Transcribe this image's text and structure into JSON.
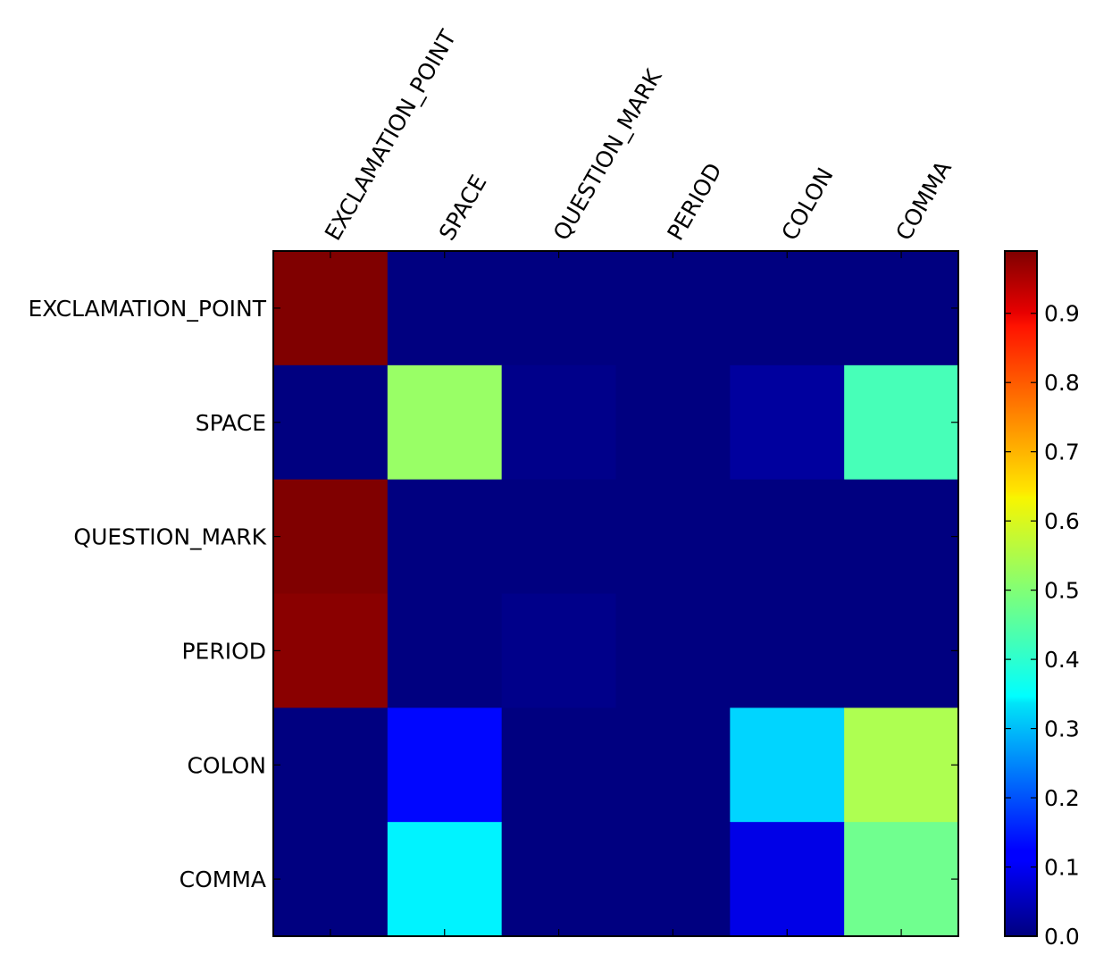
{
  "chart_data": {
    "type": "heatmap",
    "title": "",
    "xlabel": "",
    "ylabel": "",
    "x_categories": [
      "EXCLAMATION_POINT",
      "SPACE",
      "QUESTION_MARK",
      "PERIOD",
      "COLON",
      "COMMA"
    ],
    "y_categories": [
      "EXCLAMATION_POINT",
      "SPACE",
      "QUESTION_MARK",
      "PERIOD",
      "COLON",
      "COMMA"
    ],
    "values": [
      [
        0.99,
        0.0,
        0.0,
        0.0,
        0.0,
        0.0
      ],
      [
        0.0,
        0.52,
        0.01,
        0.0,
        0.03,
        0.44
      ],
      [
        0.99,
        0.0,
        0.0,
        0.0,
        0.0,
        0.0
      ],
      [
        0.98,
        0.0,
        0.01,
        0.0,
        0.0,
        0.0
      ],
      [
        0.0,
        0.13,
        0.0,
        0.0,
        0.33,
        0.54
      ],
      [
        0.0,
        0.36,
        0.0,
        0.0,
        0.1,
        0.48
      ]
    ],
    "colormap": "jet",
    "colorbar": {
      "vmin": 0.0,
      "vmax": 0.99,
      "ticks": [
        0.0,
        0.1,
        0.2,
        0.3,
        0.4,
        0.5,
        0.6,
        0.7,
        0.8,
        0.9
      ],
      "tick_labels": [
        "0.0",
        "0.1",
        "0.2",
        "0.3",
        "0.4",
        "0.5",
        "0.6",
        "0.7",
        "0.8",
        "0.9"
      ]
    },
    "grid": false
  }
}
